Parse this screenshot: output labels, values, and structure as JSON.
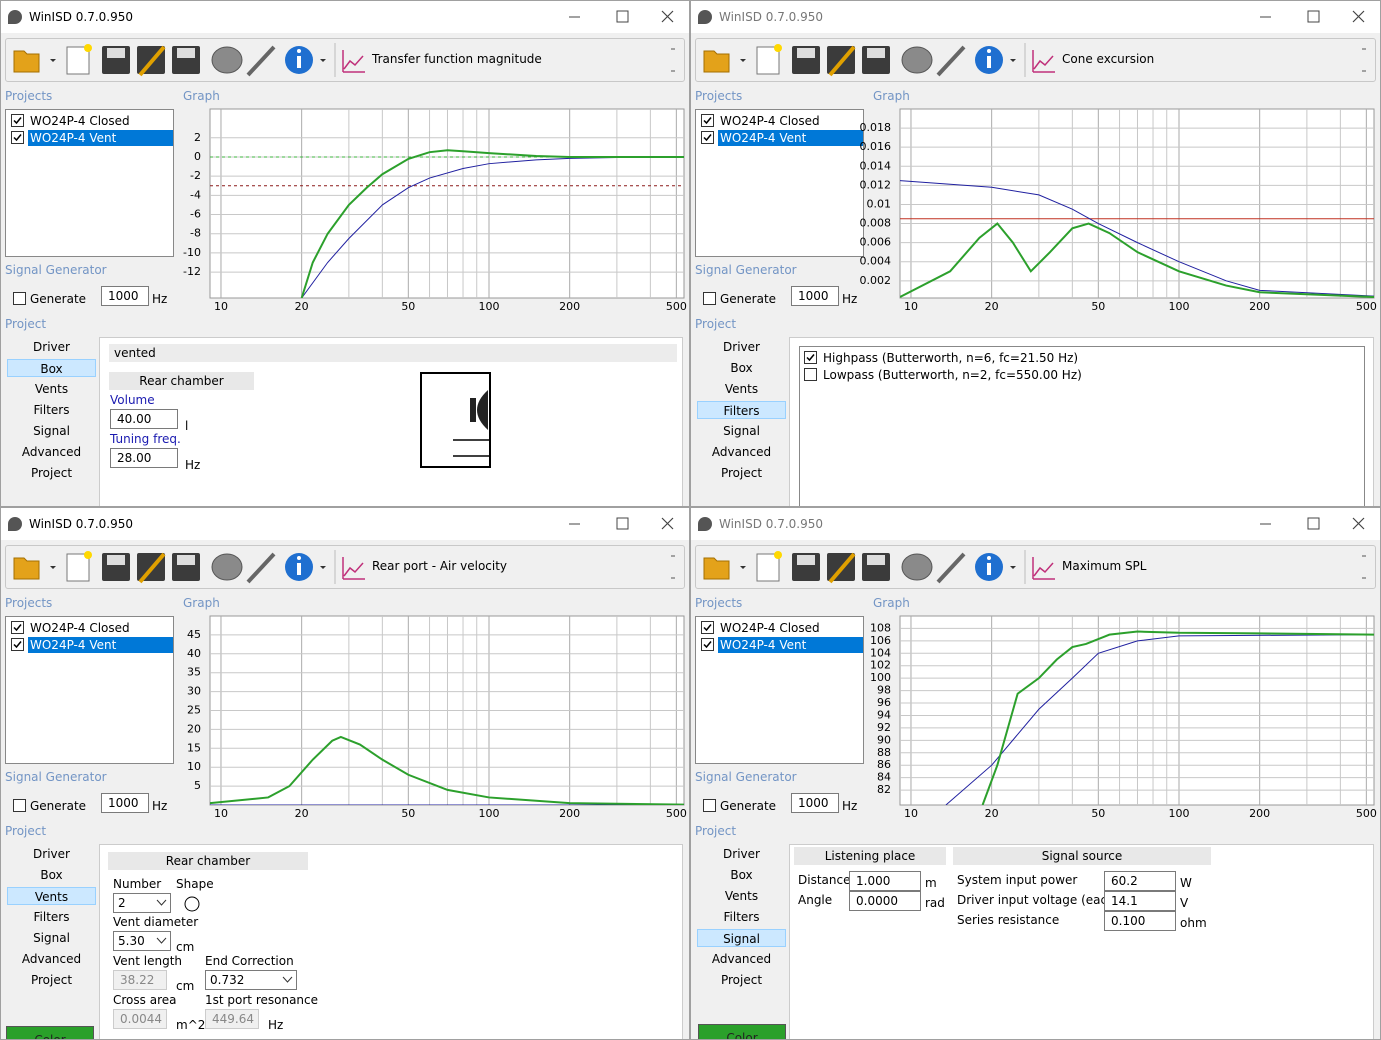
{
  "app_title": "WinISD 0.7.0.950",
  "labels": {
    "projects": "Projects",
    "graph": "Graph",
    "signal_generator": "Signal Generator",
    "project": "Project",
    "generate": "Generate",
    "hz": "Hz"
  },
  "projects": [
    {
      "name": "WO24P-4 Closed",
      "checked": true
    },
    {
      "name": "WO24P-4 Vent",
      "checked": true
    }
  ],
  "selected_project": 1,
  "nav": [
    "Driver",
    "Box",
    "Vents",
    "Filters",
    "Signal",
    "Advanced",
    "Project"
  ],
  "windows": [
    {
      "graph_name": "Transfer function magnitude",
      "generator_value": "1000",
      "generate_checked": false,
      "active_nav": 1,
      "chart": {
        "type": "line",
        "xscale": "log",
        "xlim": [
          9.1,
          534
        ],
        "xticks": [
          10,
          20,
          50,
          100,
          200,
          500
        ],
        "x_grid": [
          30,
          40,
          60,
          70,
          80,
          90,
          300,
          400
        ],
        "ylim": [
          -14.7,
          5
        ],
        "yticks": [
          2,
          0,
          -2,
          -4,
          -6,
          -8,
          -10,
          -12
        ],
        "hlines": [
          {
            "value": 0,
            "color": "#3cb43c",
            "dashed": true
          },
          {
            "value": -3,
            "color": "#8b1a1a",
            "dashed": true
          }
        ],
        "series": [
          {
            "color": "#2020a0",
            "width": 1,
            "x": [
              20,
              25,
              30,
              40,
              50,
              60,
              80,
              100,
              150,
              200,
              300,
              534
            ],
            "values": [
              -14.7,
              -11,
              -8.5,
              -5,
              -3.2,
              -2.2,
              -1.2,
              -0.7,
              -0.3,
              -0.15,
              -0.05,
              0
            ]
          },
          {
            "color": "#2ca02c",
            "width": 2,
            "x": [
              20,
              22,
              25,
              30,
              35,
              40,
              50,
              60,
              70,
              80,
              100,
              150,
              200,
              300,
              534
            ],
            "values": [
              -14.7,
              -11,
              -8,
              -5,
              -3.2,
              -1.8,
              -0.2,
              0.5,
              0.7,
              0.6,
              0.4,
              0.1,
              0,
              0,
              0
            ]
          }
        ]
      },
      "panel": {
        "mode_label": "vented",
        "section": "Rear chamber",
        "fields": [
          {
            "label": "Volume",
            "value": "40.00",
            "unit": "l"
          },
          {
            "label": "Tuning freq.",
            "value": "28.00",
            "unit": "Hz"
          }
        ]
      }
    },
    {
      "graph_name": "Cone excursion",
      "generator_value": "1000",
      "generate_checked": false,
      "active_nav": 3,
      "chart": {
        "type": "line",
        "xscale": "log",
        "xlim": [
          9.1,
          534
        ],
        "xticks": [
          10,
          20,
          50,
          100,
          200,
          500
        ],
        "x_grid": [
          30,
          40,
          60,
          70,
          80,
          90,
          300,
          400
        ],
        "ylim": [
          0.0002,
          0.02
        ],
        "yticks": [
          0.018,
          0.016,
          0.014,
          0.012,
          0.01,
          0.008,
          0.006,
          0.004,
          0.002
        ],
        "hlines": [
          {
            "value": 0.0085,
            "color": "#c03020",
            "dashed": false
          }
        ],
        "series": [
          {
            "color": "#2020a0",
            "width": 1,
            "x": [
              9.1,
              20,
              30,
              40,
              50,
              70,
              100,
              150,
              200,
              534
            ],
            "values": [
              0.0125,
              0.0118,
              0.011,
              0.0095,
              0.008,
              0.006,
              0.004,
              0.002,
              0.001,
              0.0004
            ]
          },
          {
            "color": "#2ca02c",
            "width": 2,
            "x": [
              9.1,
              14,
              18,
              21,
              24,
              28,
              33,
              40,
              46,
              55,
              70,
              100,
              150,
              200,
              534
            ],
            "values": [
              0.0003,
              0.003,
              0.0065,
              0.008,
              0.006,
              0.003,
              0.005,
              0.0075,
              0.008,
              0.007,
              0.005,
              0.003,
              0.0015,
              0.0008,
              0.0003
            ]
          }
        ]
      },
      "panel": {
        "filters": [
          {
            "label": "Highpass (Butterworth, n=6, fc=21.50 Hz)",
            "checked": true
          },
          {
            "label": "Lowpass (Butterworth, n=2, fc=550.00 Hz)",
            "checked": false
          }
        ]
      }
    },
    {
      "graph_name": "Rear port - Air velocity",
      "generator_value": "1000",
      "generate_checked": false,
      "active_nav": 2,
      "chart": {
        "type": "line",
        "xscale": "log",
        "xlim": [
          9.1,
          534
        ],
        "xticks": [
          10,
          20,
          50,
          100,
          200,
          500
        ],
        "x_grid": [
          30,
          40,
          60,
          70,
          80,
          90,
          300,
          400
        ],
        "ylim": [
          0,
          50
        ],
        "yticks": [
          45,
          40,
          35,
          30,
          25,
          20,
          15,
          10,
          5
        ],
        "hlines": [],
        "series": [
          {
            "color": "#2020a0",
            "width": 1,
            "x": [
              9.1,
              534
            ],
            "values": [
              0,
              0
            ]
          },
          {
            "color": "#2ca02c",
            "width": 2,
            "x": [
              9.1,
              15,
              18,
              22,
              26,
              28,
              33,
              40,
              50,
              70,
              100,
              200,
              534
            ],
            "values": [
              0.5,
              2,
              5,
              12,
              17,
              18,
              16,
              12,
              8,
              4,
              2,
              0.5,
              0.1
            ]
          }
        ]
      },
      "panel": {
        "section": "Rear chamber",
        "number_label": "Number",
        "number": "2",
        "shape_label": "Shape",
        "fields": [
          {
            "label": "Vent diameter",
            "value": "5.30",
            "unit": "cm"
          },
          {
            "label": "Vent length",
            "value": "38.22",
            "unit": "cm"
          },
          {
            "label": "End Correction",
            "value": "0.732"
          },
          {
            "label": "Cross area",
            "value": "0.0044",
            "unit": "m^2"
          },
          {
            "label": "1st port resonance",
            "value": "449.64",
            "unit": "Hz"
          }
        ],
        "color_button": "Color"
      }
    },
    {
      "graph_name": "Maximum SPL",
      "generator_value": "1000",
      "generate_checked": false,
      "active_nav": 4,
      "chart": {
        "type": "line",
        "xscale": "log",
        "xlim": [
          9.1,
          534
        ],
        "xticks": [
          10,
          20,
          50,
          100,
          200,
          500
        ],
        "x_grid": [
          30,
          40,
          60,
          70,
          80,
          90,
          300,
          400
        ],
        "ylim": [
          79.6,
          110
        ],
        "yticks": [
          108,
          106,
          104,
          102,
          100,
          98,
          96,
          94,
          92,
          90,
          88,
          86,
          84,
          82
        ],
        "hlines": [],
        "series": [
          {
            "color": "#2020a0",
            "width": 1,
            "x": [
              13.5,
              20,
              30,
              40,
              50,
              70,
              100,
              534
            ],
            "values": [
              79.6,
              86,
              95,
              100,
              104,
              106,
              106.8,
              107
            ]
          },
          {
            "color": "#2ca02c",
            "width": 2,
            "x": [
              18.5,
              21,
              23,
              25,
              30,
              35,
              40,
              45,
              55,
              70,
              100,
              200,
              534
            ],
            "values": [
              79.6,
              86,
              92,
              97.5,
              100,
              103,
              105,
              105.5,
              107,
              107.5,
              107.3,
              107.2,
              107
            ]
          }
        ]
      },
      "panel": {
        "sections": [
          {
            "title": "Listening place",
            "fields": [
              {
                "label": "Distance",
                "value": "1.000",
                "unit": "m"
              },
              {
                "label": "Angle",
                "value": "0.0000",
                "unit": "rad"
              }
            ]
          },
          {
            "title": "Signal source",
            "fields": [
              {
                "label": "System input power",
                "value": "60.2",
                "unit": "W"
              },
              {
                "label": "Driver input voltage (each)",
                "value": "14.1",
                "unit": "V"
              },
              {
                "label": "Series resistance",
                "value": "0.100",
                "unit": "ohm"
              }
            ]
          }
        ],
        "color_button": "Color"
      }
    }
  ]
}
